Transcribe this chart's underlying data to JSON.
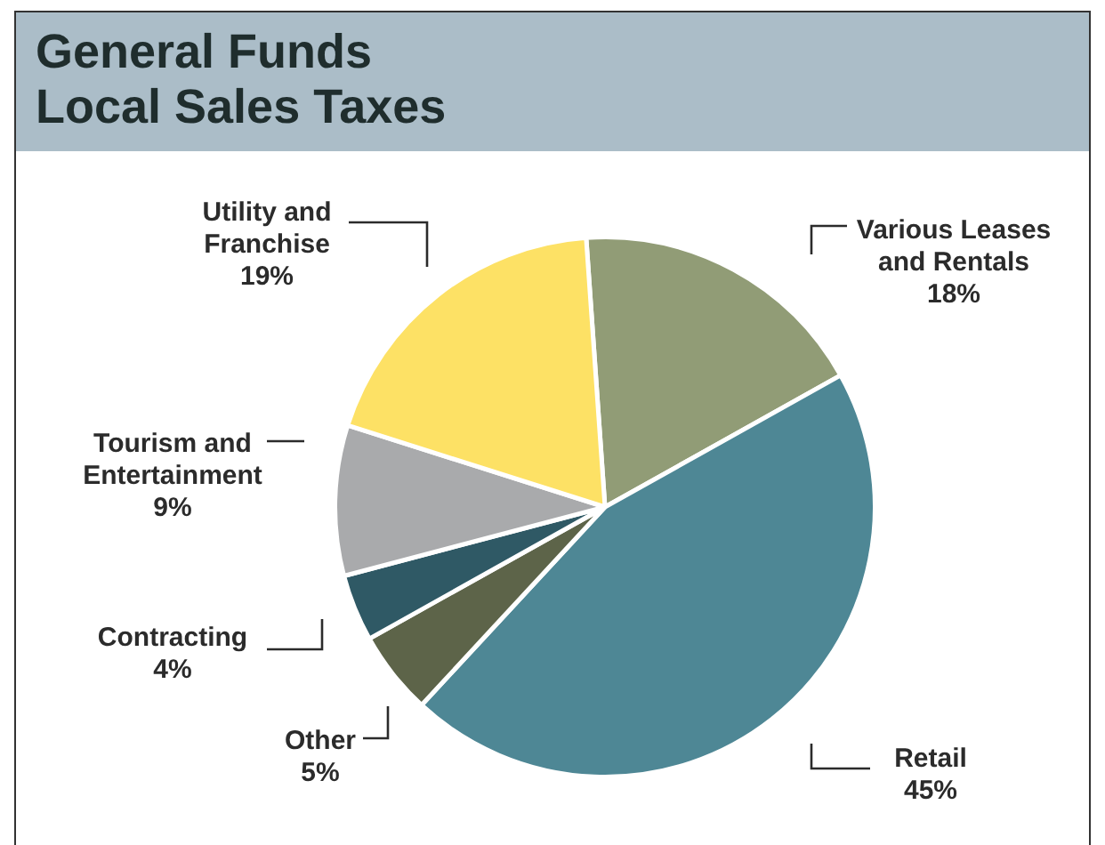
{
  "chart_data": {
    "type": "pie",
    "title": "General Funds\nLocal Sales Taxes",
    "categories": [
      "Various Leases and Rentals",
      "Retail",
      "Other",
      "Contracting",
      "Tourism and Entertainment",
      "Utility and Franchise"
    ],
    "values": [
      18,
      45,
      5,
      4,
      9,
      19
    ],
    "colors": [
      "#919c76",
      "#4e8795",
      "#5d6449",
      "#2f5965",
      "#a9aaac",
      "#fde165"
    ],
    "value_labels": [
      "18%",
      "45%",
      "5%",
      "4%",
      "9%",
      "19%"
    ]
  }
}
